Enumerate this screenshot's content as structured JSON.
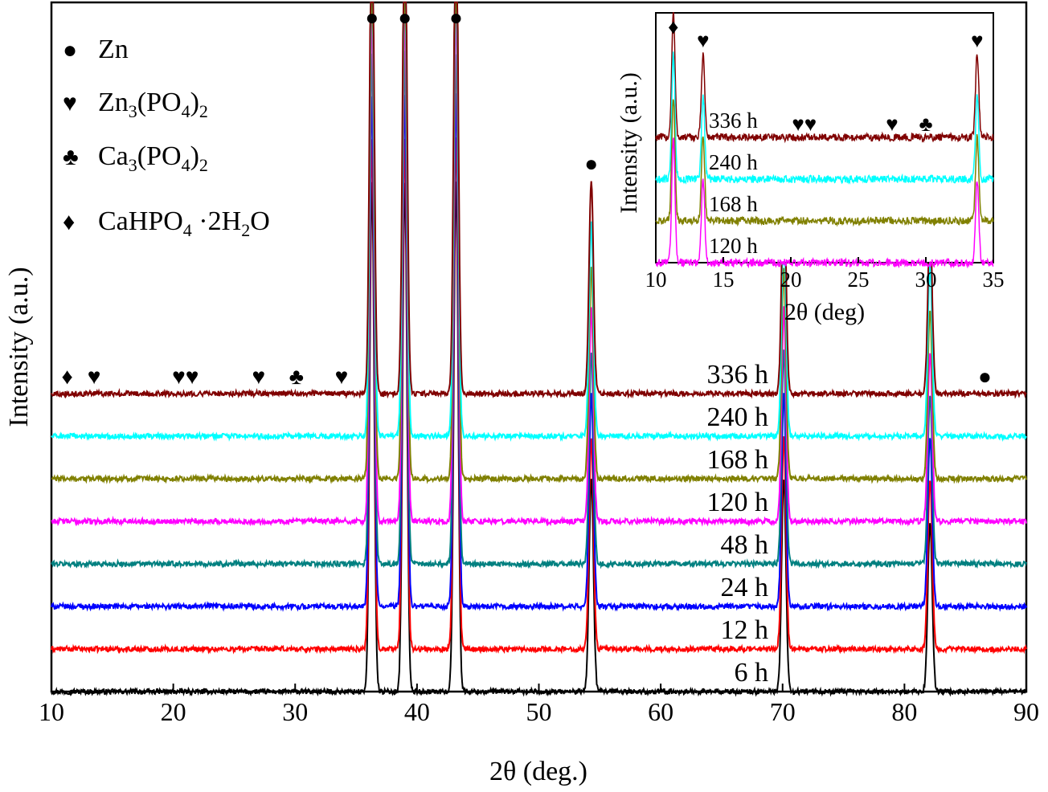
{
  "chart_data": [
    {
      "type": "line",
      "xlabel": "2θ (deg.)",
      "ylabel": "Intensity (a.u.)",
      "xlim": [
        10,
        90
      ],
      "xticks": [
        "10",
        "20",
        "30",
        "40",
        "50",
        "60",
        "70",
        "80",
        "90"
      ],
      "yticks": "none",
      "grid": false,
      "legend": {
        "placement": "top-left",
        "entries": [
          {
            "symbol": "●",
            "label": "Zn"
          },
          {
            "symbol": "♥",
            "label_parts": [
              "Zn",
              "3",
              "(PO",
              "4",
              ")",
              "2"
            ]
          },
          {
            "symbol": "♣",
            "label_parts": [
              "Ca",
              "3",
              "(PO",
              "4",
              ")",
              "2"
            ]
          },
          {
            "symbol": "♦",
            "label_parts": [
              "CaHPO",
              "4",
              " ·2H",
              "2",
              "O"
            ]
          }
        ]
      },
      "series": [
        {
          "name": "6 h",
          "color": "#000000",
          "baseline": 0,
          "peaks": [
            [
              36.3,
              12
            ],
            [
              39.0,
              12
            ],
            [
              43.2,
              12
            ],
            [
              54.3,
              5
            ],
            [
              70.1,
              5
            ],
            [
              82.1,
              4
            ]
          ]
        },
        {
          "name": "12 h",
          "color": "#ff0000",
          "baseline": 1,
          "peaks": [
            [
              36.3,
              12
            ],
            [
              39.0,
              12
            ],
            [
              43.2,
              12
            ],
            [
              54.3,
              5
            ],
            [
              70.1,
              5
            ],
            [
              82.1,
              4
            ]
          ]
        },
        {
          "name": "24 h",
          "color": "#0000ff",
          "baseline": 2,
          "peaks": [
            [
              36.3,
              12
            ],
            [
              39.0,
              12
            ],
            [
              43.2,
              12
            ],
            [
              54.3,
              5
            ],
            [
              70.1,
              5
            ],
            [
              82.1,
              4
            ]
          ]
        },
        {
          "name": "48 h",
          "color": "#008080",
          "baseline": 3,
          "peaks": [
            [
              36.3,
              12
            ],
            [
              39.0,
              12
            ],
            [
              43.2,
              12
            ],
            [
              54.3,
              5
            ],
            [
              70.1,
              5
            ],
            [
              82.1,
              4
            ]
          ]
        },
        {
          "name": "120 h",
          "color": "#ff00ff",
          "baseline": 4,
          "peaks": [
            [
              36.3,
              12
            ],
            [
              39.0,
              12
            ],
            [
              43.2,
              12
            ],
            [
              54.3,
              5
            ],
            [
              70.1,
              5
            ],
            [
              82.1,
              4
            ]
          ]
        },
        {
          "name": "168 h",
          "color": "#808000",
          "baseline": 5,
          "peaks": [
            [
              36.3,
              12
            ],
            [
              39.0,
              12
            ],
            [
              43.2,
              12
            ],
            [
              54.3,
              5
            ],
            [
              70.1,
              5
            ],
            [
              82.1,
              4
            ]
          ]
        },
        {
          "name": "240 h",
          "color": "#00ffff",
          "baseline": 6,
          "peaks": [
            [
              36.3,
              12
            ],
            [
              39.0,
              12
            ],
            [
              43.2,
              12
            ],
            [
              54.3,
              5
            ],
            [
              70.1,
              5
            ],
            [
              82.1,
              4
            ]
          ]
        },
        {
          "name": "336 h",
          "color": "#800000",
          "baseline": 7,
          "peaks": [
            [
              36.3,
              12
            ],
            [
              39.0,
              12
            ],
            [
              43.2,
              12
            ],
            [
              54.3,
              5
            ],
            [
              70.1,
              5
            ],
            [
              82.1,
              4
            ]
          ]
        }
      ],
      "phase_markers": [
        {
          "symbol": "♦",
          "x": 11.3
        },
        {
          "symbol": "♥",
          "x": 13.5
        },
        {
          "symbol": "♥♥",
          "x": 21.0
        },
        {
          "symbol": "♥",
          "x": 27.0
        },
        {
          "symbol": "♣",
          "x": 30.1
        },
        {
          "symbol": "♥",
          "x": 33.8
        },
        {
          "symbol": "●",
          "x": 36.3
        },
        {
          "symbol": "●",
          "x": 39.0
        },
        {
          "symbol": "●",
          "x": 43.2
        },
        {
          "symbol": "●",
          "x": 54.3
        },
        {
          "symbol": "●",
          "x": 70.1
        },
        {
          "symbol": "●",
          "x": 82.1
        },
        {
          "symbol": "●",
          "x": 86.6
        }
      ]
    },
    {
      "type": "line",
      "xlabel": "2θ (deg)",
      "ylabel": "Intensity (a.u.)",
      "xlim": [
        10,
        35
      ],
      "xticks": [
        "10",
        "15",
        "20",
        "25",
        "30",
        "35"
      ],
      "grid": false,
      "series": [
        {
          "name": "336 h",
          "color": "#800000",
          "baseline": 3,
          "peaks": [
            [
              11.3,
              3
            ],
            [
              13.5,
              2
            ],
            [
              33.8,
              2
            ]
          ]
        },
        {
          "name": "240 h",
          "color": "#00ffff",
          "baseline": 2,
          "peaks": [
            [
              11.3,
              3
            ],
            [
              13.5,
              2
            ],
            [
              33.8,
              2
            ]
          ]
        },
        {
          "name": "168 h",
          "color": "#808000",
          "baseline": 1,
          "peaks": [
            [
              11.3,
              3
            ],
            [
              13.5,
              2
            ],
            [
              33.8,
              2
            ]
          ]
        },
        {
          "name": "120 h",
          "color": "#ff00ff",
          "baseline": 0,
          "peaks": [
            [
              11.3,
              3
            ],
            [
              13.5,
              2
            ],
            [
              33.8,
              2
            ]
          ]
        }
      ],
      "phase_markers": [
        {
          "symbol": "♦",
          "x": 11.3
        },
        {
          "symbol": "♥",
          "x": 13.5
        },
        {
          "symbol": "♥♥",
          "x": 21.0
        },
        {
          "symbol": "♥",
          "x": 27.5
        },
        {
          "symbol": "♣",
          "x": 30.0
        },
        {
          "symbol": "♥",
          "x": 33.8
        }
      ]
    }
  ]
}
